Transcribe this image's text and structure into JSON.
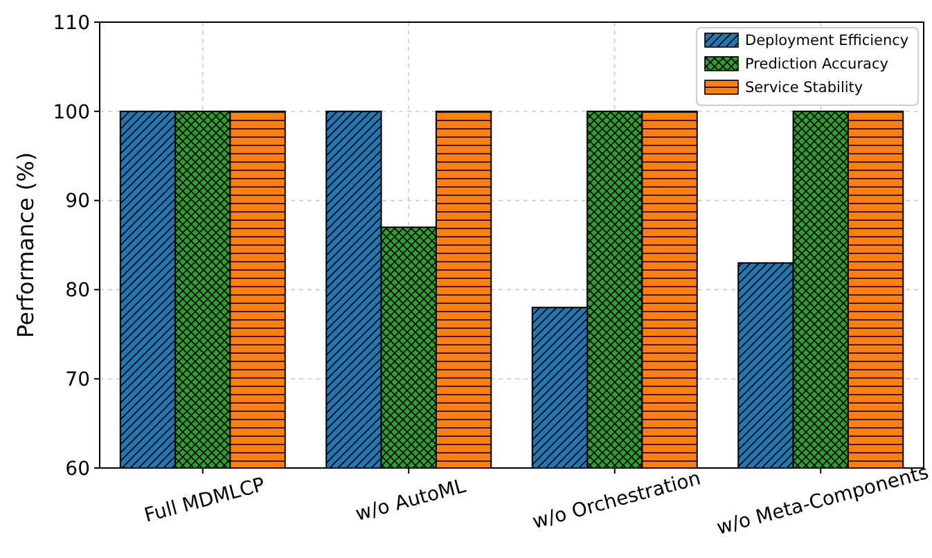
{
  "chart_data": {
    "type": "bar",
    "ylabel": "Performance (%)",
    "categories": [
      "Full MDMLCP",
      "w/o AutoML",
      "w/o Orchestration",
      "w/o Meta-Components"
    ],
    "series": [
      {
        "name": "Deployment Efficiency",
        "color": "#1f77b4",
        "values": [
          100,
          100,
          78,
          83
        ]
      },
      {
        "name": "Prediction Accuracy",
        "color": "#2ca02c",
        "values": [
          100,
          87,
          100,
          100
        ]
      },
      {
        "name": "Service Stability",
        "color": "#ff7f0e",
        "values": [
          100,
          100,
          100,
          100
        ]
      }
    ],
    "ylim": [
      60,
      110
    ],
    "yticks": [
      60,
      70,
      80,
      90,
      100,
      110
    ],
    "grid": true,
    "legend": "top right"
  }
}
